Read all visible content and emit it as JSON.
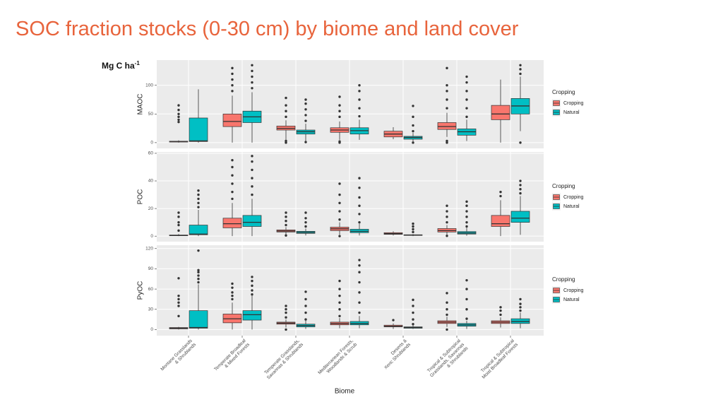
{
  "title": "SOC fraction stocks (0-30 cm) by biome and land cover",
  "unit_label": {
    "text": "Mg C ha",
    "superscript": "-1"
  },
  "chart_data": [
    {
      "type": "box",
      "y_label": "MAOC",
      "ylim": [
        -10,
        144
      ],
      "yticks": [
        0,
        50,
        100
      ],
      "grid": true,
      "legend_title": "Cropping",
      "legend_position": "right",
      "series": [
        {
          "name": "Cropping",
          "color": "#f8766d",
          "boxes": [
            {
              "low": 0,
              "q1": 1,
              "median": 2,
              "q3": 2.5,
              "high": 4,
              "outliers": [
                36,
                40,
                45,
                50,
                57,
                65
              ]
            },
            {
              "low": 0,
              "q1": 28,
              "median": 37,
              "q3": 50,
              "high": 82,
              "outliers": [
                90,
                100,
                110,
                120,
                130
              ]
            },
            {
              "low": 5,
              "q1": 22,
              "median": 25,
              "q3": 29,
              "high": 39,
              "outliers": [
                0,
                3,
                45,
                55,
                65,
                78
              ]
            },
            {
              "low": 5,
              "q1": 18,
              "median": 22,
              "q3": 26,
              "high": 37,
              "outliers": [
                0,
                2,
                45,
                55,
                65,
                80
              ]
            },
            {
              "low": 6,
              "q1": 10,
              "median": 15,
              "q3": 20,
              "high": 27,
              "outliers": []
            },
            {
              "low": 10,
              "q1": 23,
              "median": 28,
              "q3": 35,
              "high": 52,
              "outliers": [
                0,
                3,
                60,
                75,
                90,
                100,
                130
              ]
            },
            {
              "low": 0,
              "q1": 40,
              "median": 50,
              "q3": 65,
              "high": 110,
              "outliers": []
            }
          ]
        },
        {
          "name": "Natural",
          "color": "#00bfc4",
          "boxes": [
            {
              "low": 0,
              "q1": 2,
              "median": 3,
              "q3": 43,
              "high": 93,
              "outliers": []
            },
            {
              "low": 0,
              "q1": 35,
              "median": 45,
              "q3": 55,
              "high": 88,
              "outliers": [
                95,
                105,
                115,
                125,
                135
              ]
            },
            {
              "low": 3,
              "q1": 15,
              "median": 19,
              "q3": 22,
              "high": 33,
              "outliers": [
                1,
                38,
                48,
                58,
                68,
                75
              ]
            },
            {
              "low": 5,
              "q1": 15,
              "median": 21,
              "q3": 26,
              "high": 40,
              "outliers": [
                46,
                60,
                75,
                90,
                100
              ]
            },
            {
              "low": 2,
              "q1": 6,
              "median": 9,
              "q3": 11,
              "high": 17,
              "outliers": [
                0,
                20,
                30,
                45,
                64
              ]
            },
            {
              "low": 3,
              "q1": 13,
              "median": 19,
              "q3": 24,
              "high": 40,
              "outliers": [
                45,
                60,
                75,
                90,
                105,
                115
              ]
            },
            {
              "low": 20,
              "q1": 50,
              "median": 64,
              "q3": 77,
              "high": 115,
              "outliers": [
                0,
                120,
                128,
                135
              ]
            }
          ]
        }
      ]
    },
    {
      "type": "box",
      "y_label": "POC",
      "ylim": [
        -4,
        61
      ],
      "yticks": [
        0,
        20,
        40,
        60
      ],
      "grid": true,
      "legend_title": "Cropping",
      "legend_position": "right",
      "series": [
        {
          "name": "Cropping",
          "color": "#f8766d",
          "boxes": [
            {
              "low": 0,
              "q1": 0.3,
              "median": 0.5,
              "q3": 0.8,
              "high": 1.5,
              "outliers": [
                4,
                8,
                10,
                14,
                17
              ]
            },
            {
              "low": 0,
              "q1": 6,
              "median": 9,
              "q3": 13,
              "high": 24,
              "outliers": [
                27,
                32,
                38,
                44,
                50,
                55
              ]
            },
            {
              "low": 1,
              "q1": 3,
              "median": 3.7,
              "q3": 4.5,
              "high": 6.5,
              "outliers": [
                0.5,
                8,
                11,
                14,
                17
              ]
            },
            {
              "low": 1,
              "q1": 4,
              "median": 5.3,
              "q3": 6.5,
              "high": 10,
              "outliers": [
                0,
                12,
                18,
                24,
                30,
                38
              ]
            },
            {
              "low": 0.5,
              "q1": 1.3,
              "median": 1.8,
              "q3": 2.5,
              "high": 3.5,
              "outliers": []
            },
            {
              "low": 1,
              "q1": 3,
              "median": 4,
              "q3": 5.5,
              "high": 8,
              "outliers": [
                0.2,
                10,
                14,
                18,
                22
              ]
            },
            {
              "low": 0,
              "q1": 7,
              "median": 9,
              "q3": 15,
              "high": 26,
              "outliers": [
                29,
                32
              ]
            }
          ]
        },
        {
          "name": "Natural",
          "color": "#00bfc4",
          "boxes": [
            {
              "low": 0,
              "q1": 1,
              "median": 1.5,
              "q3": 8,
              "high": 19,
              "outliers": [
                21,
                24,
                27,
                30,
                33
              ]
            },
            {
              "low": 0,
              "q1": 7,
              "median": 10,
              "q3": 15,
              "high": 27,
              "outliers": [
                30,
                36,
                42,
                48,
                54,
                58
              ]
            },
            {
              "low": 0.5,
              "q1": 2,
              "median": 2.7,
              "q3": 3.5,
              "high": 5.5,
              "outliers": [
                7,
                10,
                13,
                17
              ]
            },
            {
              "low": 0.5,
              "q1": 2.5,
              "median": 3.5,
              "q3": 5,
              "high": 9,
              "outliers": [
                10,
                16,
                22,
                28,
                35,
                42
              ]
            },
            {
              "low": 0,
              "q1": 0.5,
              "median": 0.8,
              "q3": 1,
              "high": 1.5,
              "outliers": [
                3,
                5,
                7,
                9
              ]
            },
            {
              "low": 0.3,
              "q1": 1.5,
              "median": 2.3,
              "q3": 3.3,
              "high": 6,
              "outliers": [
                7,
                10,
                14,
                18,
                22,
                25
              ]
            },
            {
              "low": 1,
              "q1": 10,
              "median": 13,
              "q3": 18,
              "high": 29,
              "outliers": [
                31,
                34,
                37,
                40
              ]
            }
          ]
        }
      ]
    },
    {
      "type": "box",
      "y_label": "PyOC",
      "ylim": [
        -9,
        125
      ],
      "yticks": [
        0,
        30,
        60,
        90,
        120
      ],
      "grid": true,
      "legend_title": "Cropping",
      "legend_position": "right",
      "x_label": "Biome",
      "categories": [
        [
          "Montane Grasslands",
          "& Shrublands"
        ],
        [
          "Temperate Broadleaf",
          "& Mixed Forests"
        ],
        [
          "Temperate Grasslands,",
          "Savannas & Shrublands"
        ],
        [
          "Mediterranean Forests,",
          "Woodlands & Scrub"
        ],
        [
          "Deserts &",
          "Xeric Shrublands"
        ],
        [
          "Tropical & Subtropical",
          "Grasslands, Savannas",
          "& Shrublands"
        ],
        [
          "Tropical & Subtropical",
          "Moist Broadleaf Forests"
        ]
      ],
      "series": [
        {
          "name": "Cropping",
          "color": "#f8766d",
          "boxes": [
            {
              "low": 0,
              "q1": 1,
              "median": 2,
              "q3": 3,
              "high": 4,
              "outliers": [
                20,
                35,
                40,
                45,
                50,
                76
              ]
            },
            {
              "low": 0,
              "q1": 10,
              "median": 16,
              "q3": 23,
              "high": 40,
              "outliers": [
                45,
                50,
                55,
                62,
                68
              ]
            },
            {
              "low": 3,
              "q1": 8,
              "median": 9.5,
              "q3": 11,
              "high": 15,
              "outliers": [
                0,
                18,
                25,
                30,
                35
              ]
            },
            {
              "low": 2,
              "q1": 7,
              "median": 9,
              "q3": 11,
              "high": 17,
              "outliers": [
                20,
                30,
                40,
                50,
                60,
                72
              ]
            },
            {
              "low": 1,
              "q1": 4,
              "median": 5,
              "q3": 6.5,
              "high": 9,
              "outliers": [
                14
              ]
            },
            {
              "low": 4,
              "q1": 9,
              "median": 11,
              "q3": 13,
              "high": 19,
              "outliers": [
                0,
                22,
                30,
                40,
                54
              ]
            },
            {
              "low": 3,
              "q1": 9,
              "median": 11,
              "q3": 13,
              "high": 18,
              "outliers": [
                22,
                28,
                33
              ]
            }
          ]
        },
        {
          "name": "Natural",
          "color": "#00bfc4",
          "boxes": [
            {
              "low": 0,
              "q1": 2,
              "median": 3,
              "q3": 28,
              "high": 67,
              "outliers": [
                70,
                75,
                80,
                85,
                88,
                117
              ]
            },
            {
              "low": 0,
              "q1": 14,
              "median": 22,
              "q3": 28,
              "high": 50,
              "outliers": [
                52,
                58,
                65,
                72,
                78
              ]
            },
            {
              "low": 1,
              "q1": 4,
              "median": 6,
              "q3": 8,
              "high": 13,
              "outliers": [
                15,
                25,
                35,
                45,
                56
              ]
            },
            {
              "low": 2,
              "q1": 7,
              "median": 9,
              "q3": 12,
              "high": 20,
              "outliers": [
                25,
                40,
                55,
                70,
                85,
                95,
                103
              ]
            },
            {
              "low": 1,
              "q1": 2,
              "median": 3,
              "q3": 4,
              "high": 6,
              "outliers": [
                8,
                15,
                25,
                35,
                44
              ]
            },
            {
              "low": 1,
              "q1": 5,
              "median": 7,
              "q3": 9,
              "high": 13,
              "outliers": [
                16,
                30,
                45,
                60,
                73
              ]
            },
            {
              "low": 2,
              "q1": 9,
              "median": 12,
              "q3": 16,
              "high": 25,
              "outliers": [
                28,
                33,
                38,
                45
              ]
            }
          ]
        }
      ]
    }
  ]
}
